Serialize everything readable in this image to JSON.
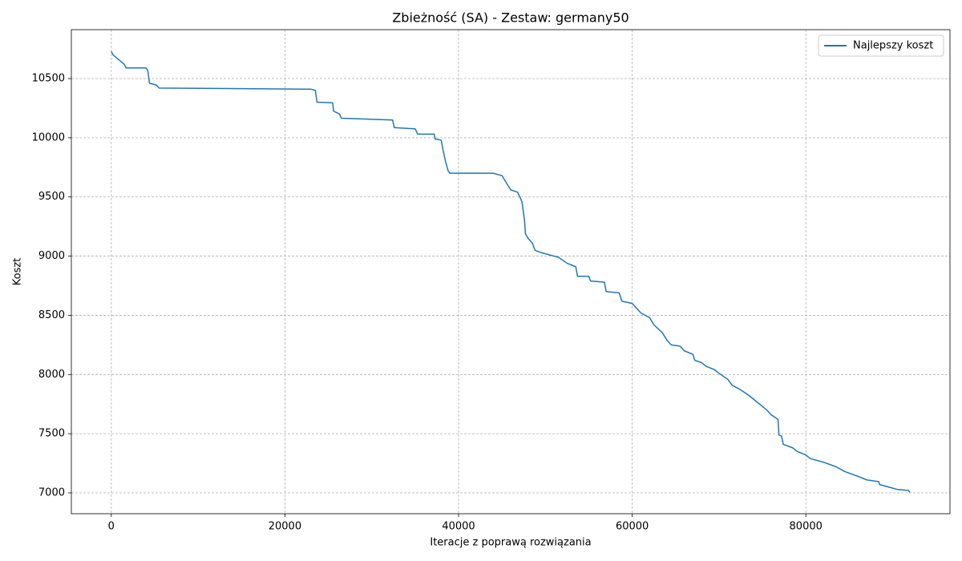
{
  "chart_data": {
    "type": "line",
    "title": "Zbieżność (SA) - Zestaw: germany50",
    "x_label": "Iteracje z poprawą rozwiązania",
    "y_label": "Koszt",
    "x": [
      0,
      200,
      1500,
      1700,
      4000,
      4200,
      4400,
      5200,
      5500,
      23000,
      23500,
      23700,
      25500,
      25600,
      26300,
      26500,
      32400,
      32600,
      35000,
      35300,
      37200,
      37300,
      38000,
      38200,
      38500,
      38800,
      39000,
      44000,
      45000,
      45500,
      46000,
      46800,
      47300,
      47600,
      47700,
      48000,
      48500,
      48800,
      49500,
      50500,
      51500,
      52500,
      53500,
      53700,
      55000,
      55200,
      56800,
      57000,
      58500,
      58800,
      60000,
      60500,
      61000,
      62000,
      62500,
      63500,
      64000,
      64500,
      65500,
      66000,
      67000,
      67200,
      68000,
      68500,
      69500,
      70000,
      71000,
      71500,
      72500,
      73500,
      74500,
      75500,
      76000,
      76800,
      76900,
      77200,
      77400,
      78500,
      79000,
      80000,
      80500,
      82000,
      83500,
      84500,
      86000,
      87000,
      88400,
      88500,
      89500,
      90500,
      91800,
      92000
    ],
    "series": [
      {
        "name": "Najlepszy koszt",
        "color": "#1f77b4",
        "values": [
          10730,
          10700,
          10620,
          10590,
          10590,
          10570,
          10460,
          10445,
          10420,
          10410,
          10400,
          10300,
          10295,
          10225,
          10200,
          10165,
          10150,
          10085,
          10075,
          10030,
          10030,
          9990,
          9980,
          9900,
          9800,
          9720,
          9700,
          9700,
          9680,
          9620,
          9560,
          9540,
          9460,
          9300,
          9190,
          9150,
          9110,
          9050,
          9030,
          9010,
          8990,
          8940,
          8910,
          8830,
          8830,
          8790,
          8780,
          8700,
          8690,
          8620,
          8600,
          8560,
          8520,
          8480,
          8420,
          8350,
          8290,
          8250,
          8240,
          8200,
          8170,
          8120,
          8100,
          8070,
          8040,
          8010,
          7960,
          7910,
          7870,
          7820,
          7760,
          7700,
          7660,
          7620,
          7490,
          7480,
          7410,
          7380,
          7350,
          7320,
          7290,
          7260,
          7220,
          7180,
          7140,
          7110,
          7095,
          7070,
          7050,
          7030,
          7020,
          7005
        ]
      }
    ],
    "xlim": [
      -4600,
      96600
    ],
    "ylim": [
      6824,
      10913
    ],
    "xticks": [
      0,
      20000,
      40000,
      60000,
      80000
    ],
    "yticks": [
      7000,
      7500,
      8000,
      8500,
      9000,
      9500,
      10000,
      10500
    ],
    "grid": true,
    "legend": "upper right"
  }
}
